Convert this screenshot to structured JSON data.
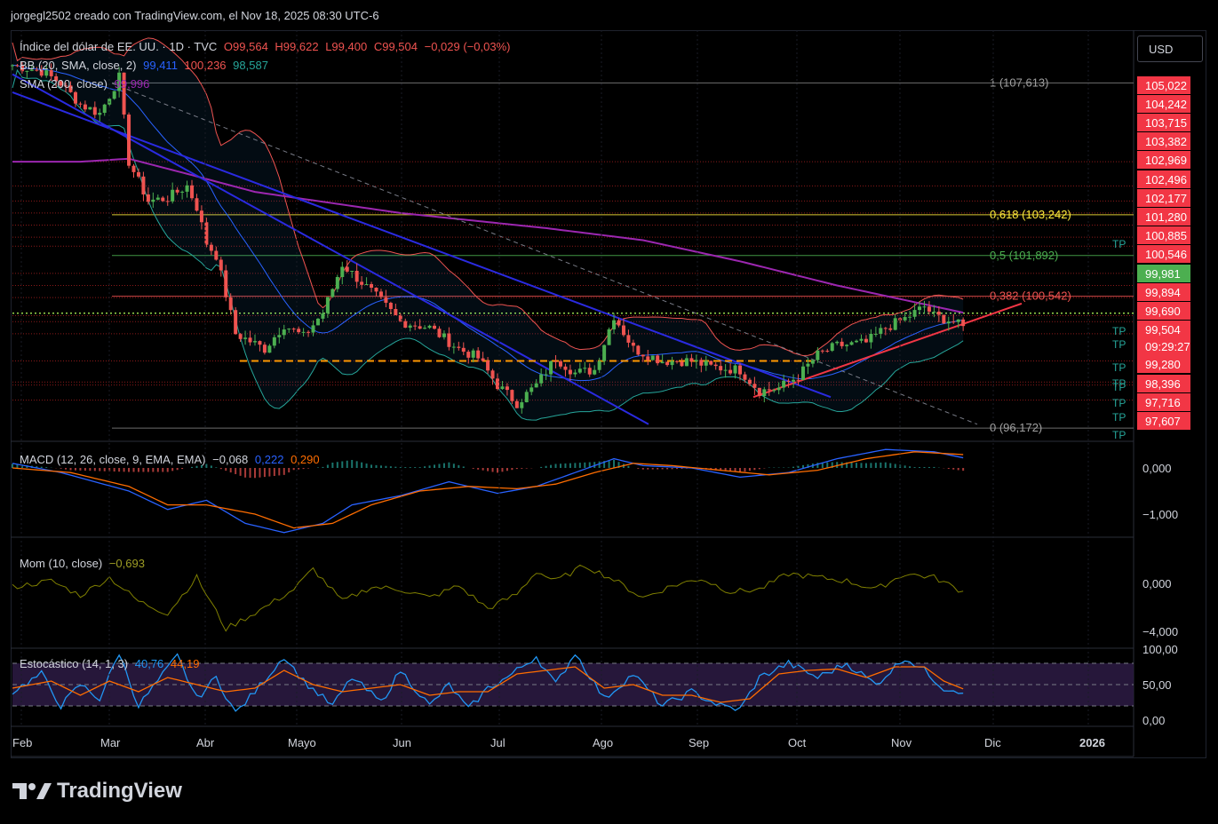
{
  "header": {
    "text": "jorgegl2502 creado con TradingView.com, el Nov 18, 2025 08:30 UTC-6"
  },
  "symbol_legend": {
    "name": "Índice del dólar de EE. UU. · 1D · TVC",
    "o": "O99,564",
    "h": "H99,622",
    "l": "L99,400",
    "c": "C99,504",
    "chg": "−0,029 (−0,03%)"
  },
  "bb_legend": {
    "label": "BB (20, SMA, close, 2)",
    "basis": "99,411",
    "upper": "100,236",
    "lower": "98,587"
  },
  "sma_legend": {
    "label": "SMA (200, close)",
    "value": "99,996"
  },
  "macd_legend": {
    "label": "MACD (12, 26, close, 9, EMA, EMA)",
    "hist": "−0,068",
    "macd": "0,222",
    "signal": "0,290"
  },
  "mom_legend": {
    "label": "Mom (10, close)",
    "value": "−0,693"
  },
  "stoch_legend": {
    "label": "Estocástico (14, 1, 3)",
    "k": "40,76",
    "d": "44,19"
  },
  "currency": "USD",
  "brand": "TradingView",
  "colors": {
    "bull": "#26a69a",
    "bear": "#ef5350",
    "bb_basis": "#2962ff",
    "bb_band": "#ef5350",
    "bb_lower": "#26a69a",
    "sma200": "#9c27b0",
    "blue_trend": "#2a2ae0",
    "red_trend": "#f23645",
    "dashed_support": "#ff9800",
    "fib_yellow": "#ffeb3b",
    "fib_green": "#4caf50",
    "fib_red": "#ef5350",
    "macd": "#2962ff",
    "signal": "#ff6d00",
    "mom": "#808000",
    "stoch_k": "#2196f3",
    "stoch_d": "#ff6d00",
    "stoch_bg": "#2a1a40"
  },
  "fib_labels": [
    {
      "text": "1 (107,613)",
      "color": "#a0a0a0"
    },
    {
      "text": "0,618 (103,242)",
      "color": "#ffeb3b"
    },
    {
      "text": "0,5 (101,892)",
      "color": "#4caf50"
    },
    {
      "text": "0,382 (100,542)",
      "color": "#ef5350"
    },
    {
      "text": "0 (96,172)",
      "color": "#a0a0a0"
    }
  ],
  "price_tags": [
    {
      "text": "105,022",
      "bg": "#f23645"
    },
    {
      "text": "104,242",
      "bg": "#f23645"
    },
    {
      "text": "103,715",
      "bg": "#f23645"
    },
    {
      "text": "103,382",
      "bg": "#f23645"
    },
    {
      "text": "102,969",
      "bg": "#f23645"
    },
    {
      "text": "102,496",
      "bg": "#f23645"
    },
    {
      "text": "102,177",
      "bg": "#f23645"
    },
    {
      "text": "101,280",
      "bg": "#f23645"
    },
    {
      "text": "100,885",
      "bg": "#f23645"
    },
    {
      "text": "100,546",
      "bg": "#f23645"
    },
    {
      "text": "99,981",
      "bg": "#4caf50"
    },
    {
      "text": "99,894",
      "bg": "#f23645"
    },
    {
      "text": "99,690",
      "bg": "#f23645"
    },
    {
      "text": "99,504",
      "bg": "#f23645"
    },
    {
      "text": "09:29:27",
      "bg": "#f23645"
    },
    {
      "text": "99,280",
      "bg": "#f23645"
    },
    {
      "text": "98,396",
      "bg": "#f23645"
    },
    {
      "text": "97,716",
      "bg": "#f23645"
    },
    {
      "text": "97,607",
      "bg": "#f23645"
    }
  ],
  "tp_label": "TP",
  "indicator_axes": {
    "macd": [
      "0,000",
      "−1,000"
    ],
    "mom": [
      "0,000",
      "−4,000"
    ],
    "stoch": [
      "100,00",
      "50,00",
      "0,00"
    ]
  },
  "chart_data": {
    "type": "candlestick",
    "x_labels": [
      "Feb",
      "Mar",
      "Abr",
      "Mayo",
      "Jun",
      "Jul",
      "Ago",
      "Sep",
      "Oct",
      "Nov",
      "Dic",
      "2026"
    ],
    "ylim": [
      96.0,
      108.3
    ],
    "price_path": [
      [
        0,
        108.2
      ],
      [
        6,
        108.0
      ],
      [
        10,
        107.6
      ],
      [
        14,
        106.9
      ],
      [
        18,
        106.6
      ],
      [
        22,
        107.8
      ],
      [
        24,
        105.0
      ],
      [
        28,
        103.7
      ],
      [
        32,
        103.8
      ],
      [
        36,
        104.2
      ],
      [
        38,
        103.5
      ],
      [
        40,
        102.3
      ],
      [
        42,
        101.9
      ],
      [
        46,
        99.3
      ],
      [
        52,
        98.8
      ],
      [
        56,
        99.6
      ],
      [
        60,
        99.2
      ],
      [
        64,
        100.0
      ],
      [
        68,
        101.6
      ],
      [
        74,
        100.7
      ],
      [
        80,
        99.7
      ],
      [
        86,
        99.5
      ],
      [
        92,
        98.8
      ],
      [
        96,
        98.5
      ],
      [
        100,
        97.6
      ],
      [
        104,
        97.0
      ],
      [
        108,
        97.6
      ],
      [
        112,
        98.5
      ],
      [
        116,
        98.0
      ],
      [
        120,
        98.1
      ],
      [
        124,
        99.9
      ],
      [
        128,
        98.8
      ],
      [
        134,
        98.4
      ],
      [
        140,
        98.4
      ],
      [
        144,
        98.2
      ],
      [
        150,
        98.1
      ],
      [
        154,
        97.4
      ],
      [
        158,
        97.5
      ],
      [
        162,
        97.9
      ],
      [
        166,
        98.6
      ],
      [
        170,
        98.9
      ],
      [
        176,
        99.0
      ],
      [
        180,
        99.5
      ],
      [
        184,
        99.8
      ],
      [
        188,
        100.2
      ],
      [
        190,
        99.9
      ],
      [
        194,
        99.7
      ],
      [
        196,
        99.5
      ]
    ],
    "sma200_path": [
      [
        0,
        105.0
      ],
      [
        14,
        105.0
      ],
      [
        24,
        105.1
      ],
      [
        36,
        104.6
      ],
      [
        50,
        104.0
      ],
      [
        80,
        103.3
      ],
      [
        110,
        102.8
      ],
      [
        130,
        102.4
      ],
      [
        150,
        101.7
      ],
      [
        170,
        100.9
      ],
      [
        196,
        100.0
      ]
    ],
    "macd_path": [
      [
        0,
        0.1
      ],
      [
        10,
        -0.1
      ],
      [
        24,
        -0.5
      ],
      [
        32,
        -0.9
      ],
      [
        40,
        -0.7
      ],
      [
        48,
        -1.2
      ],
      [
        56,
        -1.4
      ],
      [
        64,
        -1.2
      ],
      [
        70,
        -0.8
      ],
      [
        80,
        -0.6
      ],
      [
        90,
        -0.3
      ],
      [
        100,
        -0.55
      ],
      [
        108,
        -0.4
      ],
      [
        116,
        -0.1
      ],
      [
        124,
        0.2
      ],
      [
        130,
        0.05
      ],
      [
        140,
        0.0
      ],
      [
        150,
        -0.2
      ],
      [
        160,
        -0.1
      ],
      [
        170,
        0.2
      ],
      [
        180,
        0.4
      ],
      [
        190,
        0.35
      ],
      [
        196,
        0.22
      ]
    ],
    "signal_path": [
      [
        0,
        0.0
      ],
      [
        12,
        -0.1
      ],
      [
        24,
        -0.4
      ],
      [
        32,
        -0.8
      ],
      [
        40,
        -0.8
      ],
      [
        50,
        -1.0
      ],
      [
        58,
        -1.3
      ],
      [
        66,
        -1.2
      ],
      [
        74,
        -0.8
      ],
      [
        84,
        -0.5
      ],
      [
        94,
        -0.4
      ],
      [
        104,
        -0.45
      ],
      [
        112,
        -0.35
      ],
      [
        120,
        -0.1
      ],
      [
        128,
        0.1
      ],
      [
        136,
        0.05
      ],
      [
        146,
        -0.05
      ],
      [
        156,
        -0.15
      ],
      [
        166,
        -0.05
      ],
      [
        176,
        0.2
      ],
      [
        186,
        0.35
      ],
      [
        196,
        0.29
      ]
    ],
    "mom_path": [
      [
        0,
        -0.3
      ],
      [
        8,
        0.2
      ],
      [
        14,
        -1.0
      ],
      [
        20,
        0.5
      ],
      [
        26,
        -1.5
      ],
      [
        32,
        -2.5
      ],
      [
        38,
        0.5
      ],
      [
        44,
        -3.8
      ],
      [
        52,
        -2.0
      ],
      [
        58,
        -0.5
      ],
      [
        62,
        1.2
      ],
      [
        68,
        -1.5
      ],
      [
        74,
        -0.3
      ],
      [
        80,
        -0.5
      ],
      [
        86,
        -1.2
      ],
      [
        92,
        -0.2
      ],
      [
        98,
        -2.1
      ],
      [
        104,
        -0.9
      ],
      [
        108,
        1.0
      ],
      [
        112,
        0.2
      ],
      [
        118,
        1.5
      ],
      [
        124,
        0.3
      ],
      [
        130,
        -1.2
      ],
      [
        136,
        -0.2
      ],
      [
        142,
        0.4
      ],
      [
        148,
        -0.7
      ],
      [
        154,
        -0.5
      ],
      [
        160,
        0.8
      ],
      [
        166,
        0.5
      ],
      [
        172,
        0.2
      ],
      [
        178,
        -0.5
      ],
      [
        184,
        0.8
      ],
      [
        190,
        0.5
      ],
      [
        196,
        -0.7
      ]
    ],
    "stoch_k_path": [
      [
        0,
        40
      ],
      [
        6,
        65
      ],
      [
        10,
        20
      ],
      [
        14,
        50
      ],
      [
        18,
        30
      ],
      [
        22,
        95
      ],
      [
        26,
        20
      ],
      [
        30,
        55
      ],
      [
        34,
        90
      ],
      [
        38,
        30
      ],
      [
        42,
        60
      ],
      [
        46,
        10
      ],
      [
        50,
        40
      ],
      [
        56,
        90
      ],
      [
        60,
        55
      ],
      [
        66,
        20
      ],
      [
        70,
        60
      ],
      [
        76,
        25
      ],
      [
        80,
        70
      ],
      [
        86,
        20
      ],
      [
        90,
        50
      ],
      [
        94,
        15
      ],
      [
        98,
        45
      ],
      [
        102,
        60
      ],
      [
        108,
        90
      ],
      [
        112,
        50
      ],
      [
        116,
        95
      ],
      [
        122,
        30
      ],
      [
        128,
        65
      ],
      [
        134,
        20
      ],
      [
        140,
        40
      ],
      [
        146,
        20
      ],
      [
        150,
        15
      ],
      [
        154,
        60
      ],
      [
        160,
        80
      ],
      [
        166,
        60
      ],
      [
        172,
        80
      ],
      [
        178,
        50
      ],
      [
        184,
        88
      ],
      [
        188,
        70
      ],
      [
        192,
        45
      ],
      [
        196,
        41
      ]
    ],
    "stoch_d_path": [
      [
        0,
        45
      ],
      [
        8,
        55
      ],
      [
        14,
        35
      ],
      [
        20,
        55
      ],
      [
        26,
        40
      ],
      [
        32,
        60
      ],
      [
        38,
        50
      ],
      [
        44,
        40
      ],
      [
        50,
        45
      ],
      [
        56,
        70
      ],
      [
        62,
        50
      ],
      [
        68,
        40
      ],
      [
        74,
        45
      ],
      [
        80,
        50
      ],
      [
        86,
        35
      ],
      [
        92,
        40
      ],
      [
        98,
        40
      ],
      [
        104,
        65
      ],
      [
        110,
        70
      ],
      [
        116,
        75
      ],
      [
        122,
        45
      ],
      [
        128,
        50
      ],
      [
        134,
        35
      ],
      [
        140,
        35
      ],
      [
        146,
        25
      ],
      [
        152,
        30
      ],
      [
        158,
        65
      ],
      [
        164,
        70
      ],
      [
        170,
        72
      ],
      [
        176,
        60
      ],
      [
        182,
        75
      ],
      [
        188,
        75
      ],
      [
        192,
        55
      ],
      [
        196,
        44
      ]
    ]
  }
}
